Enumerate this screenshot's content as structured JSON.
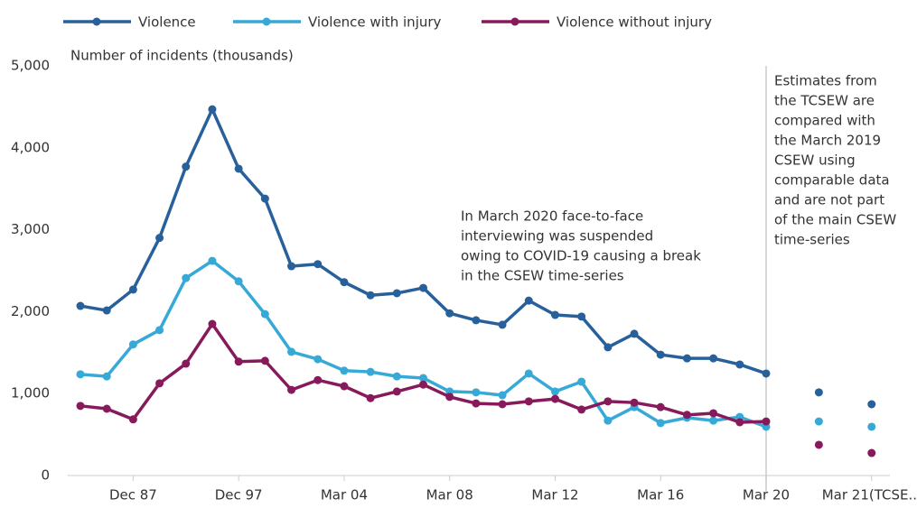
{
  "chart_data": {
    "type": "line",
    "y_label": "Number of incidents (thousands)",
    "categories": [
      null,
      null,
      "Dec 87",
      null,
      null,
      null,
      "Dec 97",
      null,
      null,
      null,
      "Mar 04",
      null,
      null,
      null,
      "Mar 08",
      null,
      null,
      null,
      "Mar 12",
      null,
      null,
      null,
      "Mar 16",
      null,
      null,
      null,
      "Mar 20",
      null,
      null,
      null,
      "Mar 21(TCSE..."
    ],
    "series": [
      {
        "name": "Violence",
        "color": "#27609b",
        "values": [
          2070,
          2015,
          2270,
          2900,
          3770,
          4470,
          3745,
          3380,
          2555,
          2580,
          2360,
          2200,
          2225,
          2290,
          1980,
          1895,
          1840,
          2135,
          1960,
          1940,
          1565,
          1730,
          1475,
          1430,
          1430,
          1355,
          1245,
          null,
          1015,
          null,
          870
        ]
      },
      {
        "name": "Violence with injury",
        "color": "#36a9d6",
        "values": [
          1235,
          1210,
          1600,
          1775,
          2410,
          2620,
          2370,
          1970,
          1510,
          1420,
          1280,
          1265,
          1210,
          1190,
          1025,
          1015,
          980,
          1245,
          1025,
          1145,
          670,
          835,
          640,
          705,
          670,
          715,
          595,
          null,
          660,
          null,
          595
        ]
      },
      {
        "name": "Violence without injury",
        "color": "#871a5b",
        "values": [
          850,
          815,
          685,
          1125,
          1365,
          1850,
          1390,
          1400,
          1045,
          1165,
          1090,
          945,
          1025,
          1110,
          960,
          880,
          870,
          905,
          935,
          805,
          905,
          890,
          835,
          740,
          760,
          650,
          660,
          null,
          375,
          null,
          275
        ]
      }
    ],
    "ylim": [
      0,
      5000
    ],
    "yticks": [
      0,
      {
        "value": 1000,
        "label": "1,000"
      },
      {
        "value": 2000,
        "label": "2,000"
      },
      {
        "value": 3000,
        "label": "3,000"
      },
      {
        "value": 4000,
        "label": "4,000"
      },
      {
        "value": 5000,
        "label": "5,000"
      }
    ],
    "annotations": [
      {
        "lines": [
          "In March 2020 face-to-face",
          "interviewing was suspended",
          "owing to COVID-19 causing a break",
          "in the CSEW time-series"
        ]
      },
      {
        "lines": [
          "Estimates from",
          "the TCSEW are",
          "compared with",
          "the March 2019",
          "CSEW using",
          "comparable data",
          "and are not part",
          "of the main CSEW",
          "time-series"
        ]
      }
    ]
  }
}
